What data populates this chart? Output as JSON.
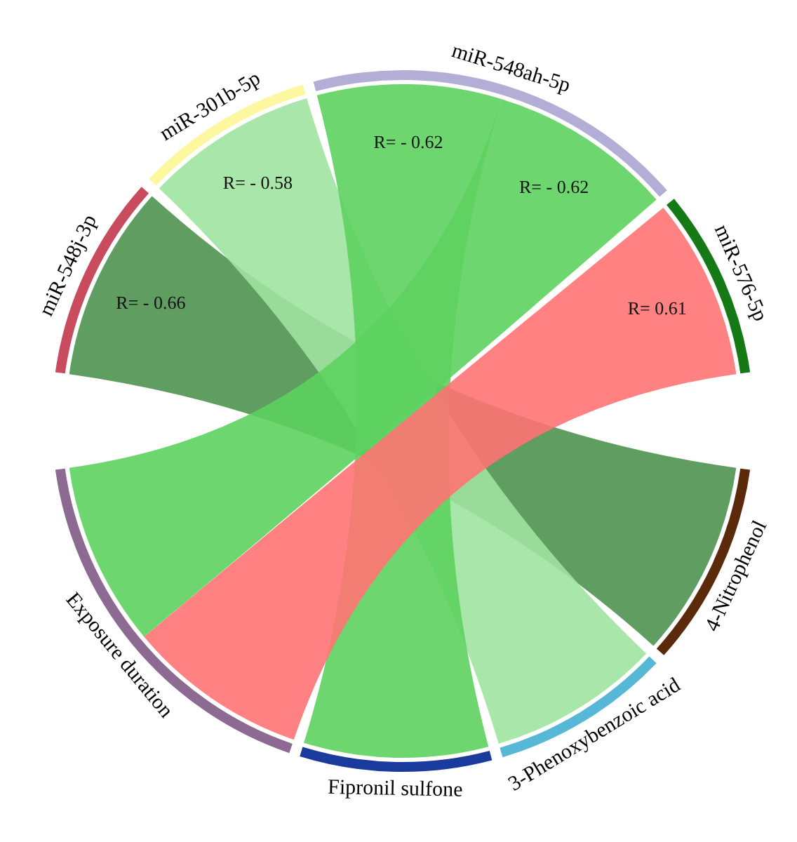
{
  "chart_data": {
    "type": "other",
    "categories": [
      "miR-548j-3p",
      "miR-301b-5p",
      "miR-548ah-5p",
      "miR-576-5p"
    ],
    "colors": [
      "#c84b5e",
      "#fdf7a0",
      "#b3aed6",
      "#157a15"
    ],
    "series": [
      {
        "name": "4-Nitrophenol",
        "color": "#5a2a0a",
        "values": [
          -0.66,
          null,
          null,
          null
        ],
        "colors": [
          "#4f9250",
          null,
          null,
          null
        ],
        "value_labels": [
          "R= - 0.66",
          null,
          null,
          null
        ]
      },
      {
        "name": "3-Phenoxybenzoic acid",
        "color": "#56b8d6",
        "values": [
          null,
          -0.58,
          null,
          null
        ],
        "colors": [
          null,
          "#a0e3a0",
          null,
          null
        ],
        "value_labels": [
          null,
          "R= - 0.58",
          null,
          null
        ]
      },
      {
        "name": "Fipronil sulfone",
        "color": "#1a3a9e",
        "values": [
          null,
          null,
          -0.62,
          null
        ],
        "colors": [
          null,
          null,
          "#5dd15f",
          null
        ],
        "value_labels": [
          null,
          null,
          "R= - 0.62",
          null
        ]
      },
      {
        "name": "Exposure duration",
        "color": "#8c6a92",
        "values": [
          null,
          null,
          -0.62,
          0.61
        ],
        "colors": [
          null,
          null,
          "#5dd15f",
          "#ff7373"
        ],
        "value_labels": [
          null,
          null,
          "R= - 0.62",
          "R= 0.61"
        ]
      }
    ]
  }
}
